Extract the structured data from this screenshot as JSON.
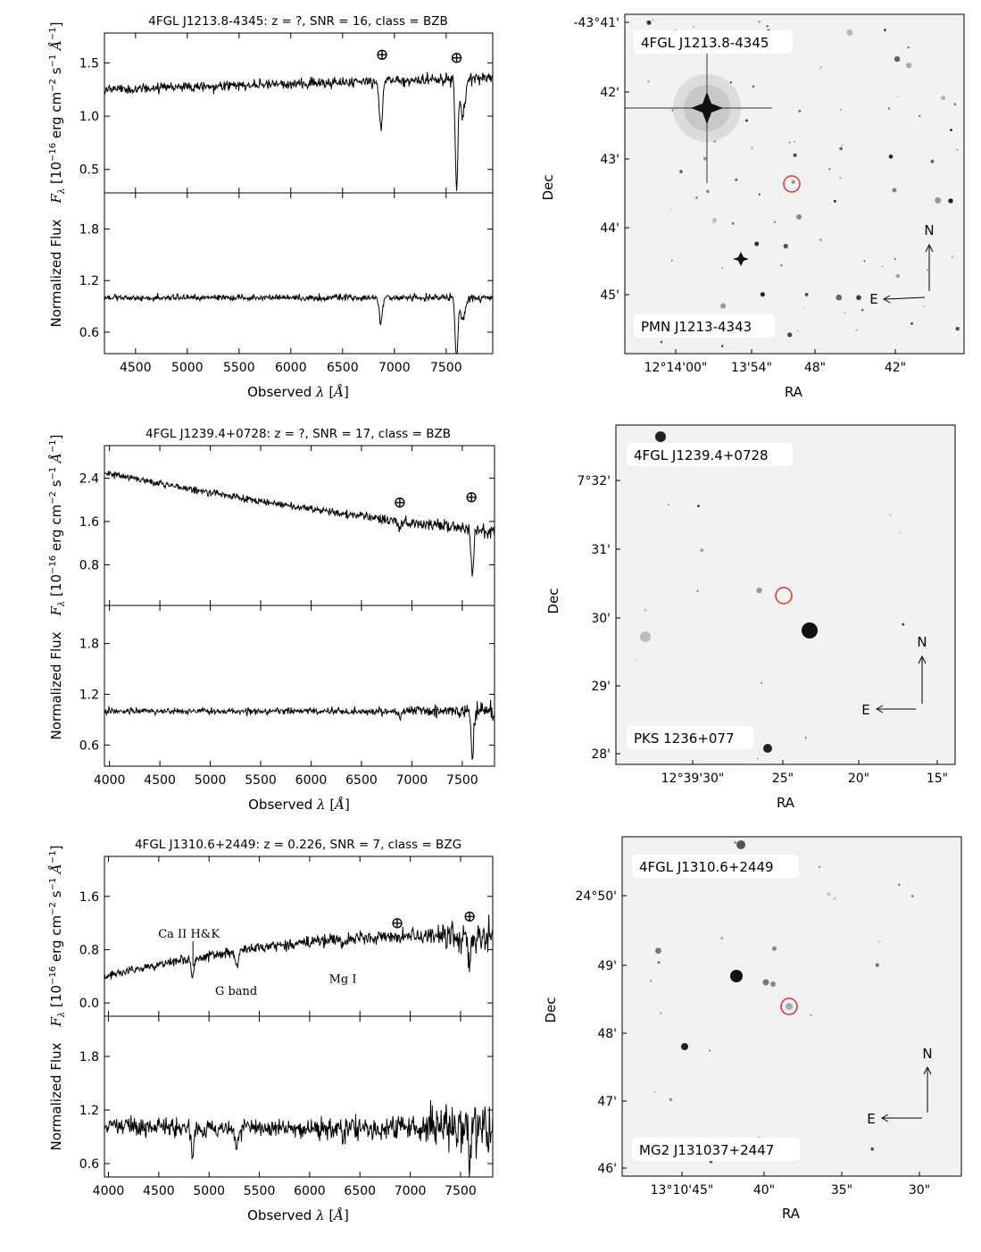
{
  "chart_data": [
    {
      "type": "line",
      "title": "4FGL J1213.8-4345: z = ?, SNR = 16, class = BZB",
      "xlabel": "Observed λ [Å]",
      "ylabel_top": "F_λ [10^-16 erg cm^-2 s^-1 Å^-1]",
      "ylabel_bottom": "Normalized Flux",
      "xlim": [
        4200,
        7950
      ],
      "x_ticks": [
        "4500",
        "5000",
        "5500",
        "6000",
        "6500",
        "7000",
        "7500"
      ],
      "top_ylim": [
        0.28,
        1.78
      ],
      "top_yticks": [
        "0.5",
        "1.0",
        "1.5"
      ],
      "bottom_ylim": [
        0.35,
        2.22
      ],
      "bottom_yticks": [
        "0.6",
        "1.2",
        "1.8"
      ],
      "telluric_markers": [
        {
          "x": 6880,
          "y": 1.58
        },
        {
          "x": 7600,
          "y": 1.55
        }
      ],
      "annotations": [],
      "spectrum": {
        "start_flux": 1.25,
        "end_flux": 1.36,
        "curve": 0,
        "noise": 0.045,
        "noise_growth": 0.2,
        "absorption": [
          [
            6870,
            30,
            0.45
          ],
          [
            7600,
            25,
            1.0
          ],
          [
            7660,
            50,
            0.35
          ]
        ]
      },
      "normalized": {
        "noise": 0.035,
        "noise_growth": 0.2,
        "absorption": [
          [
            6870,
            30,
            0.3
          ],
          [
            7600,
            25,
            0.75
          ],
          [
            7660,
            50,
            0.25
          ]
        ]
      }
    },
    {
      "type": "line",
      "title": "4FGL J1239.4+0728: z = ?, SNR = 17, class = BZB",
      "xlabel": "Observed λ [Å]",
      "ylabel_top": "F_λ [10^-16 erg cm^-2 s^-1 Å^-1]",
      "ylabel_bottom": "Normalized Flux",
      "xlim": [
        3950,
        7820
      ],
      "x_ticks": [
        "4000",
        "4500",
        "5000",
        "5500",
        "6000",
        "6500",
        "7000",
        "7500"
      ],
      "top_ylim": [
        0.05,
        3.0
      ],
      "top_yticks": [
        "0.8",
        "1.6",
        "2.4"
      ],
      "bottom_ylim": [
        0.35,
        2.25
      ],
      "bottom_yticks": [
        "0.6",
        "1.2",
        "1.8"
      ],
      "telluric_markers": [
        {
          "x": 6880,
          "y": 1.95
        },
        {
          "x": 7590,
          "y": 2.05
        }
      ],
      "annotations": [],
      "spectrum": {
        "start_flux": 2.5,
        "end_flux": 1.4,
        "curve": 0.3,
        "noise": 0.06,
        "noise_growth": 1.6,
        "absorption": [
          [
            6880,
            30,
            0.15
          ],
          [
            7600,
            25,
            0.8
          ]
        ]
      },
      "normalized": {
        "noise": 0.035,
        "noise_growth": 1.8,
        "absorption": [
          [
            6880,
            30,
            0.08
          ],
          [
            7600,
            25,
            0.55
          ]
        ]
      }
    },
    {
      "type": "line",
      "title": "4FGL J1310.6+2449: z = 0.226, SNR = 7, class = BZG",
      "xlabel": "Observed λ [Å]",
      "ylabel_top": "F_λ [10^-16 erg cm^-2 s^-1 Å^-1]",
      "ylabel_bottom": "Normalized Flux",
      "xlim": [
        3960,
        7820
      ],
      "x_ticks": [
        "4000",
        "4500",
        "5000",
        "5500",
        "6000",
        "6500",
        "7000",
        "7500"
      ],
      "top_ylim": [
        -0.2,
        2.2
      ],
      "top_yticks": [
        "0.0",
        "0.8",
        "1.6"
      ],
      "bottom_ylim": [
        0.45,
        2.25
      ],
      "bottom_yticks": [
        "0.6",
        "1.2",
        "1.8"
      ],
      "telluric_markers": [
        {
          "x": 6870,
          "y": 1.2
        },
        {
          "x": 7590,
          "y": 1.3
        }
      ],
      "annotations": [
        {
          "text": "Ca II H&K",
          "x": 4800,
          "y": 0.98,
          "line_to": 0.55
        },
        {
          "text": "G band",
          "x": 5270,
          "y": 0.12
        },
        {
          "text": "Mg I",
          "x": 6330,
          "y": 0.3
        }
      ],
      "spectrum": {
        "start_flux": 0.4,
        "end_flux": 1.0,
        "curve": 0.2,
        "noise": 0.07,
        "noise_growth": 2.5,
        "absorption": [
          [
            4835,
            25,
            0.3
          ],
          [
            5275,
            35,
            0.22
          ],
          [
            6330,
            30,
            0.12
          ],
          [
            7590,
            25,
            0.5
          ]
        ]
      },
      "normalized": {
        "noise": 0.09,
        "noise_growth": 2.5,
        "absorption": [
          [
            4835,
            25,
            0.35
          ],
          [
            5275,
            35,
            0.25
          ],
          [
            6330,
            30,
            0.12
          ],
          [
            7590,
            25,
            0.45
          ]
        ]
      }
    }
  ],
  "sky_images": [
    {
      "source_label": "4FGL J1213.8-4345",
      "counterpart_label": "PMN J1213-4343",
      "xlabel": "RA",
      "ylabel": "Dec",
      "ra_ticks": [
        "12°14'00\"",
        "13'54\"",
        "48\"",
        "42\""
      ],
      "dec_ticks": [
        "-43°41'",
        "42'",
        "43'",
        "44'",
        "45'"
      ],
      "compass_n": "N",
      "compass_e": "E",
      "star_seed": 11,
      "star_count": 90
    },
    {
      "source_label": "4FGL J1239.4+0728",
      "counterpart_label": "PKS 1236+077",
      "xlabel": "RA",
      "ylabel": "Dec",
      "ra_ticks": [
        "12°39'30\"",
        "25\"",
        "20\"",
        "15\""
      ],
      "dec_ticks": [
        "7°32'",
        "31'",
        "30'",
        "29'",
        "28'"
      ],
      "compass_n": "N",
      "compass_e": "E",
      "star_seed": 23,
      "star_count": 14
    },
    {
      "source_label": "4FGL J1310.6+2449",
      "counterpart_label": "MG2 J131037+2447",
      "xlabel": "RA",
      "ylabel": "Dec",
      "ra_ticks": [
        "13°10'45\"",
        "40\"",
        "35\"",
        "30\""
      ],
      "dec_ticks": [
        "24°50'",
        "49'",
        "48'",
        "47'",
        "46'"
      ],
      "compass_n": "N",
      "compass_e": "E",
      "star_seed": 37,
      "star_count": 22
    }
  ],
  "symbols": {
    "earth": "⊕"
  }
}
